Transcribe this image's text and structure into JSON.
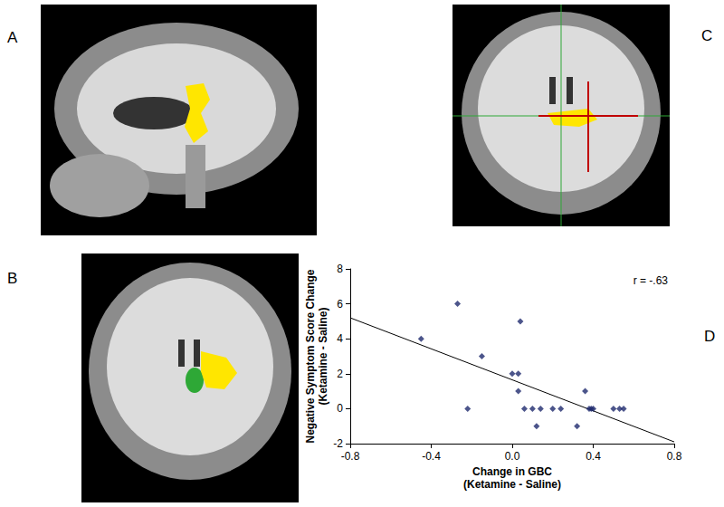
{
  "panel_labels": [
    "A",
    "B",
    "C",
    "D"
  ],
  "chart_data": {
    "type": "scatter",
    "x_label": "Change in GBC\n(Ketamine - Saline)",
    "y_label": "Negative Symptom Score Change\n(Ketamine - Saline)",
    "annotations": [
      "r = -.63"
    ],
    "x": [
      -0.45,
      -0.27,
      -0.22,
      -0.15,
      0.0,
      0.03,
      0.04,
      0.03,
      0.06,
      0.1,
      0.12,
      0.14,
      0.2,
      0.24,
      0.32,
      0.36,
      0.38,
      0.39,
      0.4,
      0.5,
      0.53,
      0.55
    ],
    "values": [
      4,
      6,
      0,
      3,
      2,
      2,
      5,
      1,
      0,
      0,
      -1,
      0,
      0,
      0,
      -1,
      1,
      0,
      0,
      0,
      0,
      0,
      0
    ],
    "trend_line": {
      "x": [
        -0.8,
        0.8
      ],
      "y": [
        5.2,
        -1.9
      ]
    },
    "color": "#1f2a6e",
    "marker": "diamond",
    "xlim": [
      -0.8,
      0.8
    ],
    "xticks": [
      -0.8,
      -0.4,
      {
        "value": 0,
        "label": "0.0"
      },
      0.4,
      0.8
    ],
    "ylim": [
      -2,
      8
    ],
    "yticks": [
      -2,
      0,
      2,
      4,
      6,
      8
    ],
    "grid": false
  }
}
